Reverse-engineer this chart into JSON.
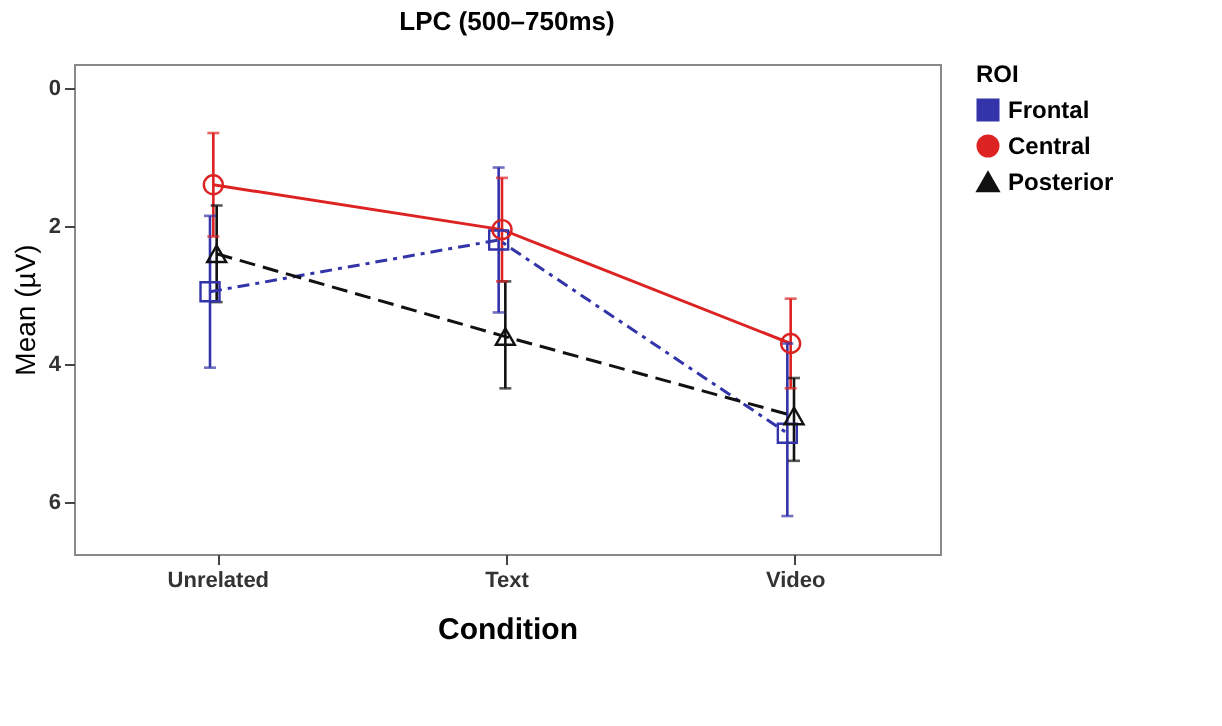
{
  "chart_data": {
    "type": "line",
    "title": "LPC (500–750ms)",
    "xlabel": "Condition",
    "ylabel": "Mean (µV)",
    "legend_title": "ROI",
    "legend": "right",
    "categories": [
      "Unrelated",
      "Text",
      "Video"
    ],
    "ylim": [
      6.75,
      -0.35
    ],
    "yticks": [
      0,
      2,
      4,
      6
    ],
    "series": [
      {
        "name": "Frontal",
        "color": "#3333aa",
        "marker": "square",
        "line_style": "dashdot",
        "values": [
          2.95,
          2.2,
          5.0
        ],
        "errors": [
          [
            1.85,
            4.05
          ],
          [
            1.15,
            3.25
          ],
          [
            3.7,
            6.2
          ]
        ]
      },
      {
        "name": "Central",
        "color": "#dd2222",
        "marker": "circle",
        "line_style": "solid",
        "values": [
          1.4,
          2.05,
          3.7
        ],
        "errors": [
          [
            0.65,
            2.15
          ],
          [
            1.3,
            2.8
          ],
          [
            3.05,
            4.35
          ]
        ]
      },
      {
        "name": "Posterior",
        "color": "#111111",
        "marker": "triangle",
        "line_style": "dashed",
        "values": [
          2.4,
          3.6,
          4.75
        ],
        "errors": [
          [
            1.7,
            3.1
          ],
          [
            2.8,
            4.35
          ],
          [
            4.2,
            5.4
          ]
        ]
      }
    ]
  }
}
